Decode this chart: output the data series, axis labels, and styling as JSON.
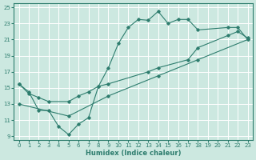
{
  "title": "",
  "xlabel": "Humidex (Indice chaleur)",
  "bg_color": "#cce8e0",
  "line_color": "#2e7d6e",
  "grid_color": "#ffffff",
  "xlim": [
    -0.5,
    23.5
  ],
  "ylim": [
    8.5,
    25.5
  ],
  "xticks": [
    0,
    1,
    2,
    3,
    4,
    5,
    6,
    7,
    8,
    9,
    10,
    11,
    12,
    13,
    14,
    15,
    16,
    17,
    18,
    19,
    20,
    21,
    22,
    23
  ],
  "yticks": [
    9,
    11,
    13,
    15,
    17,
    19,
    21,
    23,
    25
  ],
  "line1_x": [
    0,
    1,
    2,
    3,
    4,
    5,
    6,
    7,
    8,
    9,
    10,
    11,
    12,
    13,
    14,
    15,
    16,
    17,
    18,
    21,
    22,
    23
  ],
  "line1_y": [
    15.5,
    14.5,
    12.2,
    12.2,
    10.2,
    9.2,
    10.5,
    11.3,
    15.2,
    17.5,
    20.5,
    22.5,
    23.5,
    23.4,
    24.5,
    23.0,
    23.5,
    23.5,
    22.2,
    22.5,
    22.5,
    21.0
  ],
  "line2_x": [
    0,
    1,
    2,
    3,
    5,
    6,
    7,
    8,
    9,
    13,
    14,
    17,
    18,
    21,
    22,
    23
  ],
  "line2_y": [
    15.5,
    14.3,
    13.8,
    13.3,
    13.3,
    14.0,
    14.5,
    15.2,
    15.5,
    17.0,
    17.5,
    18.5,
    20.0,
    21.5,
    22.0,
    21.2
  ],
  "line3_x": [
    0,
    5,
    9,
    14,
    18,
    23
  ],
  "line3_y": [
    13.0,
    11.5,
    14.0,
    16.5,
    18.5,
    21.0
  ]
}
